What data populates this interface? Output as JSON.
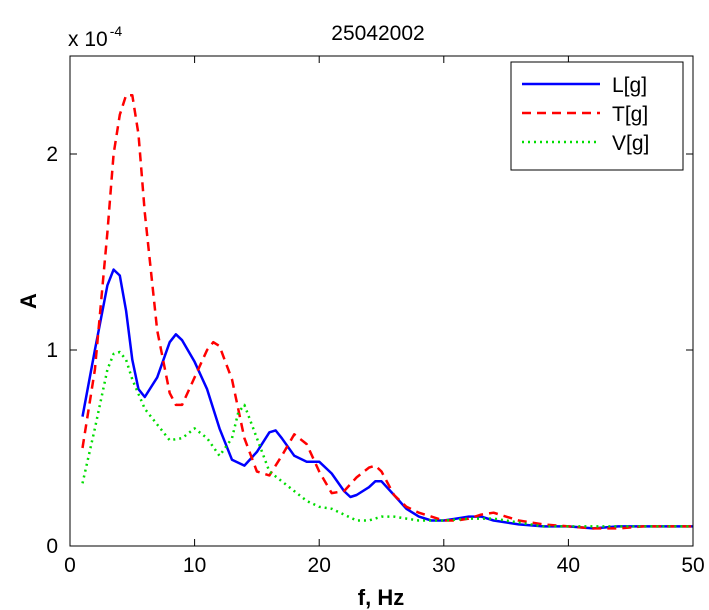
{
  "chart_data": {
    "type": "line",
    "title": "25042002",
    "xlabel": "f, Hz",
    "ylabel": "A",
    "y_multiplier": {
      "base": "x 10",
      "exponent": "-4"
    },
    "xlim": [
      0,
      50
    ],
    "ylim": [
      0,
      2.5
    ],
    "x_ticks": [
      0,
      10,
      20,
      30,
      40,
      50
    ],
    "y_ticks": [
      0,
      1,
      2
    ],
    "grid": false,
    "legend_position": "top-right",
    "series": [
      {
        "name": "L[g]",
        "color": "#0000ff",
        "dash": "solid",
        "x": [
          1,
          2,
          3,
          3.5,
          4,
          4.5,
          5,
          5.5,
          6,
          7,
          8,
          8.5,
          9,
          10,
          11,
          12,
          13,
          14,
          15,
          16,
          16.5,
          17,
          18,
          19,
          20,
          21,
          22,
          22.5,
          23,
          24,
          24.5,
          25,
          26,
          27,
          28,
          29,
          30,
          31,
          32,
          33,
          34,
          36,
          38,
          40,
          42,
          44,
          46,
          48,
          50
        ],
        "y": [
          0.66,
          1.0,
          1.33,
          1.41,
          1.38,
          1.2,
          0.95,
          0.8,
          0.76,
          0.86,
          1.04,
          1.08,
          1.05,
          0.94,
          0.8,
          0.6,
          0.44,
          0.41,
          0.48,
          0.58,
          0.59,
          0.55,
          0.46,
          0.43,
          0.43,
          0.37,
          0.28,
          0.25,
          0.26,
          0.3,
          0.33,
          0.33,
          0.26,
          0.19,
          0.15,
          0.13,
          0.13,
          0.14,
          0.15,
          0.15,
          0.13,
          0.11,
          0.1,
          0.1,
          0.09,
          0.1,
          0.1,
          0.1,
          0.1
        ]
      },
      {
        "name": "T[g]",
        "color": "#ff0000",
        "dash": "dashed",
        "x": [
          1,
          2,
          3,
          3.5,
          4,
          4.5,
          5,
          5.5,
          6,
          7,
          8,
          8.5,
          9,
          10,
          11,
          11.5,
          12,
          13,
          14,
          15,
          16,
          17,
          18,
          19,
          20,
          21,
          22,
          23,
          24,
          24.5,
          25,
          26,
          27,
          28,
          29,
          30,
          31,
          32,
          33,
          34,
          36,
          38,
          40,
          42,
          44,
          46,
          48,
          50
        ],
        "y": [
          0.5,
          0.9,
          1.6,
          2.0,
          2.2,
          2.3,
          2.3,
          2.1,
          1.7,
          1.1,
          0.78,
          0.72,
          0.72,
          0.86,
          1.0,
          1.04,
          1.02,
          0.85,
          0.55,
          0.38,
          0.36,
          0.46,
          0.57,
          0.52,
          0.38,
          0.27,
          0.28,
          0.35,
          0.4,
          0.41,
          0.38,
          0.26,
          0.2,
          0.17,
          0.15,
          0.13,
          0.13,
          0.14,
          0.16,
          0.17,
          0.13,
          0.11,
          0.1,
          0.09,
          0.09,
          0.1,
          0.1,
          0.1
        ]
      },
      {
        "name": "V[g]",
        "color": "#00dd00",
        "dash": "dotted",
        "x": [
          1,
          2,
          3,
          3.5,
          4,
          4.5,
          5,
          6,
          7,
          8,
          9,
          10,
          11,
          12,
          13,
          13.5,
          14,
          15,
          16,
          17,
          18,
          19,
          20,
          21,
          22,
          23,
          24,
          25,
          26,
          27,
          28,
          30,
          32,
          34,
          36,
          38,
          40,
          42,
          44,
          46,
          48,
          50
        ],
        "y": [
          0.32,
          0.6,
          0.9,
          0.98,
          0.99,
          0.95,
          0.85,
          0.7,
          0.62,
          0.54,
          0.55,
          0.6,
          0.55,
          0.46,
          0.55,
          0.68,
          0.72,
          0.55,
          0.38,
          0.33,
          0.28,
          0.23,
          0.2,
          0.19,
          0.16,
          0.13,
          0.13,
          0.15,
          0.15,
          0.14,
          0.13,
          0.13,
          0.14,
          0.14,
          0.12,
          0.1,
          0.1,
          0.1,
          0.1,
          0.1,
          0.1,
          0.1
        ]
      }
    ]
  }
}
